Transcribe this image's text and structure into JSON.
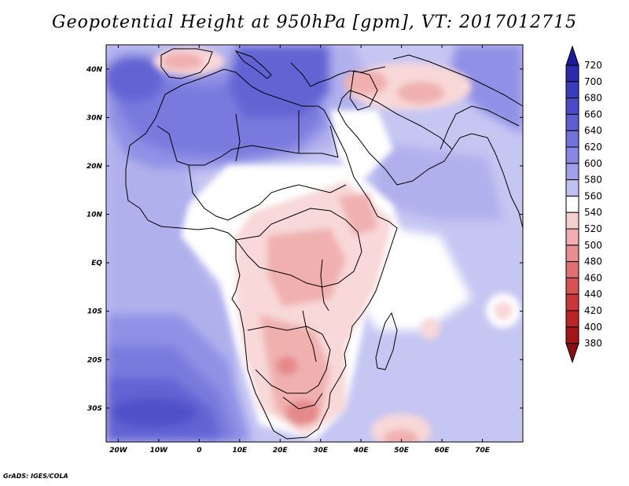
{
  "title": "Geopotential Height at 950hPa [gpm], VT: 2017012715",
  "credit": "GrADS: IGES/COLA",
  "map": {
    "lon_range": [
      -23,
      80
    ],
    "lat_range": [
      -37,
      45
    ],
    "lat_ticks": [
      {
        "value": 40,
        "label": "40N"
      },
      {
        "value": 30,
        "label": "30N"
      },
      {
        "value": 20,
        "label": "20N"
      },
      {
        "value": 10,
        "label": "10N"
      },
      {
        "value": 0,
        "label": "EQ"
      },
      {
        "value": -10,
        "label": "10S"
      },
      {
        "value": -20,
        "label": "20S"
      },
      {
        "value": -30,
        "label": "30S"
      }
    ],
    "lon_ticks": [
      {
        "value": -20,
        "label": "20W"
      },
      {
        "value": -10,
        "label": "10W"
      },
      {
        "value": 0,
        "label": "0"
      },
      {
        "value": 10,
        "label": "10E"
      },
      {
        "value": 20,
        "label": "20E"
      },
      {
        "value": 30,
        "label": "30E"
      },
      {
        "value": 40,
        "label": "40E"
      },
      {
        "value": 50,
        "label": "50E"
      },
      {
        "value": 60,
        "label": "60E"
      },
      {
        "value": 70,
        "label": "70E"
      }
    ]
  },
  "colorbar": {
    "levels": [
      720,
      700,
      680,
      660,
      640,
      620,
      600,
      580,
      560,
      540,
      520,
      500,
      480,
      460,
      440,
      420,
      400,
      380
    ],
    "colors": [
      "#1e1a9e",
      "#2b2aad",
      "#3b3bbd",
      "#4b4bc9",
      "#5e5ed3",
      "#7272dc",
      "#8888e4",
      "#a0a0ea",
      "#c2c2f2",
      "#ffffff",
      "#f6d0d0",
      "#f0aeae",
      "#e88e8e",
      "#e07070",
      "#d85252",
      "#cc3838",
      "#bb2424",
      "#a51616",
      "#8c0c0c"
    ],
    "palette": {
      "bg": "#c6c6f3",
      "h520": "#f8d8d8",
      "h500": "#f0b0b0",
      "h480": "#e58a8a",
      "h580": "#b0b0ed",
      "h600": "#9090e6",
      "h620": "#7a7ade",
      "h640": "#6464d4",
      "h660": "#5050c8",
      "white": "#ffffff"
    }
  }
}
